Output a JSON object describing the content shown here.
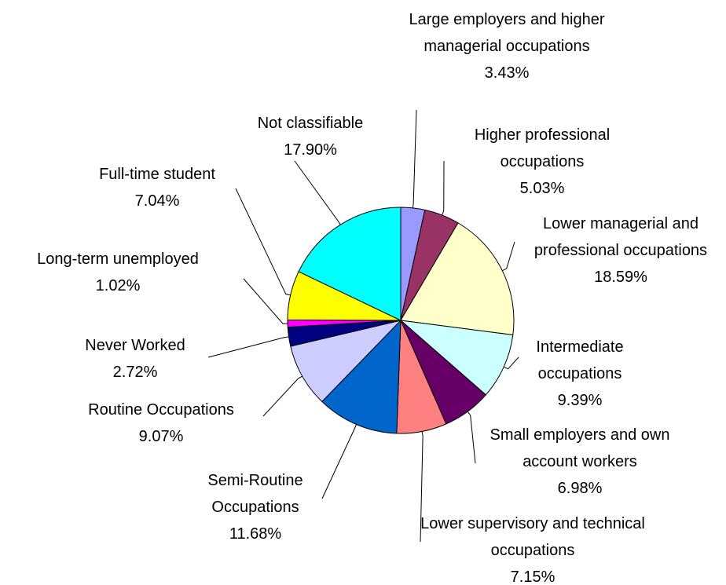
{
  "chart_data": {
    "type": "pie",
    "categories": [
      "Large employers and higher managerial occupations",
      "Higher professional occupations",
      "Lower managerial and professional occupations",
      "Intermediate occupations",
      "Small employers and own account workers",
      "Lower supervisory and technical occupations",
      "Semi-Routine Occupations",
      "Routine Occupations",
      "Never Worked",
      "Long-term unemployed",
      "Full-time student",
      "Not classifiable"
    ],
    "values": [
      3.43,
      5.03,
      18.59,
      9.39,
      6.98,
      7.15,
      11.68,
      9.07,
      2.72,
      1.02,
      7.04,
      17.9
    ],
    "value_labels": [
      "3.43%",
      "5.03%",
      "18.59%",
      "9.39%",
      "6.98%",
      "7.15%",
      "11.68%",
      "9.07%",
      "2.72%",
      "1.02%",
      "7.04%",
      "17.90%"
    ],
    "colors": [
      "#9999ff",
      "#993366",
      "#ffffcc",
      "#ccffff",
      "#660066",
      "#ff8080",
      "#0066cc",
      "#ccccff",
      "#000080",
      "#ff00ff",
      "#ffff00",
      "#00ffff"
    ]
  }
}
